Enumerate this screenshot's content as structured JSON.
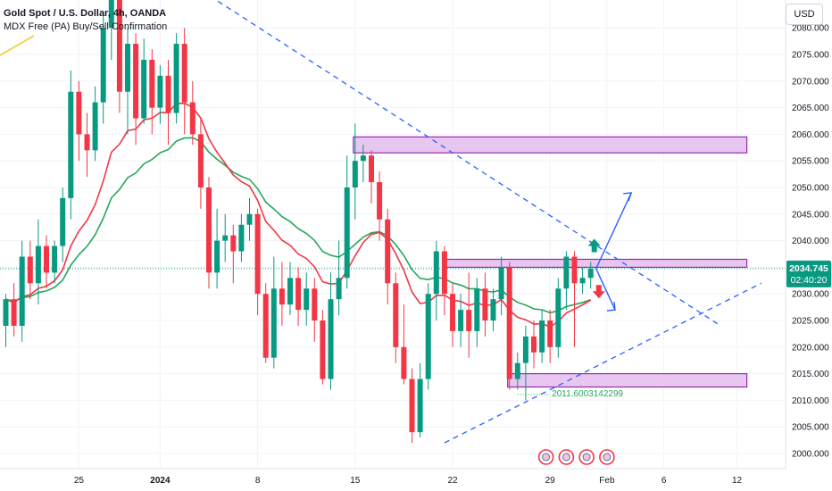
{
  "header": {
    "title": "Gold Spot / U.S. Dollar, 4h, OANDA",
    "indicator": "MDX Free (PA) Buy/Sell Confirmation",
    "currency": "USD"
  },
  "price_tag": {
    "price": "2034.745",
    "countdown": "02:40:20"
  },
  "level_label": "2011.6003142299",
  "colors": {
    "up": "#089981",
    "down": "#f23645",
    "zone_fill": "#e7c6f0",
    "zone_border": "#9c27b0",
    "trend": "#2962ff",
    "ema_red": "#f23645",
    "ema_green": "#26a65b",
    "price_tag": "#089981"
  },
  "chart_data": {
    "type": "candlestick",
    "title": "Gold Spot / U.S. Dollar, 4h, OANDA",
    "y_ticks": [
      2000,
      2005,
      2010,
      2015,
      2020,
      2025,
      2030,
      2035,
      2040,
      2045,
      2050,
      2055,
      2060,
      2065,
      2070,
      2075,
      2080
    ],
    "x_ticks": [
      {
        "label": "25",
        "bar": 9
      },
      {
        "label": "2024",
        "bar": 19,
        "bold": true
      },
      {
        "label": "8",
        "bar": 31
      },
      {
        "label": "15",
        "bar": 43
      },
      {
        "label": "22",
        "bar": 55
      },
      {
        "label": "29",
        "bar": 67
      },
      {
        "label": "Feb",
        "bar": 74
      },
      {
        "label": "6",
        "bar": 81
      },
      {
        "label": "12",
        "bar": 90
      }
    ],
    "last_price": 2034.745,
    "candles": [
      [
        2024.0,
        2029.0,
        2020.0,
        2030.0
      ],
      [
        2029.0,
        2024.0,
        2022.0,
        2032.0
      ],
      [
        2024.0,
        2037.0,
        2021.0,
        2040.0
      ],
      [
        2037.0,
        2032.0,
        2029.0,
        2040.0
      ],
      [
        2032.0,
        2039.0,
        2028.0,
        2044.0
      ],
      [
        2039.0,
        2034.0,
        2031.0,
        2041.0
      ],
      [
        2034.0,
        2039.0,
        2032.0,
        2040.0
      ],
      [
        2039.0,
        2048.0,
        2036.0,
        2050.0
      ],
      [
        2048.0,
        2068.0,
        2044.0,
        2072.0
      ],
      [
        2068.0,
        2060.0,
        2055.0,
        2070.0
      ],
      [
        2060.0,
        2057.0,
        2052.0,
        2064.0
      ],
      [
        2057.0,
        2066.0,
        2055.0,
        2069.0
      ],
      [
        2066.0,
        2080.0,
        2062.0,
        2083.0
      ],
      [
        2080.0,
        2092.0,
        2074.0,
        2097.0
      ],
      [
        2092.0,
        2068.0,
        2064.0,
        2095.0
      ],
      [
        2068.0,
        2077.0,
        2060.0,
        2080.0
      ],
      [
        2077.0,
        2063.0,
        2058.0,
        2079.0
      ],
      [
        2063.0,
        2074.0,
        2062.0,
        2078.0
      ],
      [
        2074.0,
        2065.0,
        2060.0,
        2076.0
      ],
      [
        2065.0,
        2071.0,
        2062.0,
        2073.0
      ],
      [
        2071.0,
        2064.0,
        2058.0,
        2074.0
      ],
      [
        2064.0,
        2077.0,
        2062.0,
        2079.0
      ],
      [
        2077.0,
        2066.0,
        2060.0,
        2080.0
      ],
      [
        2066.0,
        2060.0,
        2058.0,
        2070.0
      ],
      [
        2060.0,
        2050.0,
        2046.0,
        2063.0
      ],
      [
        2050.0,
        2034.0,
        2031.0,
        2052.0
      ],
      [
        2034.0,
        2040.0,
        2031.0,
        2046.0
      ],
      [
        2040.0,
        2041.0,
        2036.0,
        2045.0
      ],
      [
        2041.0,
        2038.0,
        2032.0,
        2043.0
      ],
      [
        2038.0,
        2043.0,
        2036.0,
        2045.0
      ],
      [
        2043.0,
        2045.0,
        2040.0,
        2048.0
      ],
      [
        2045.0,
        2030.0,
        2026.0,
        2046.0
      ],
      [
        2030.0,
        2018.0,
        2017.0,
        2032.0
      ],
      [
        2018.0,
        2031.0,
        2016.0,
        2037.0
      ],
      [
        2031.0,
        2028.0,
        2024.0,
        2036.0
      ],
      [
        2028.0,
        2033.0,
        2026.0,
        2036.0
      ],
      [
        2033.0,
        2027.0,
        2024.0,
        2035.0
      ],
      [
        2027.0,
        2031.0,
        2024.0,
        2034.0
      ],
      [
        2031.0,
        2025.0,
        2021.0,
        2033.0
      ],
      [
        2025.0,
        2014.0,
        2013.0,
        2027.0
      ],
      [
        2014.0,
        2029.0,
        2012.0,
        2034.0
      ],
      [
        2029.0,
        2033.0,
        2026.0,
        2040.0
      ],
      [
        2033.0,
        2050.0,
        2031.0,
        2056.0
      ],
      [
        2050.0,
        2055.0,
        2044.0,
        2062.0
      ],
      [
        2055.0,
        2056.0,
        2051.0,
        2058.0
      ],
      [
        2056.0,
        2051.0,
        2047.0,
        2057.0
      ],
      [
        2051.0,
        2044.0,
        2040.0,
        2053.0
      ],
      [
        2044.0,
        2032.0,
        2028.0,
        2046.0
      ],
      [
        2032.0,
        2020.0,
        2017.0,
        2034.0
      ],
      [
        2020.0,
        2014.0,
        2013.0,
        2028.0
      ],
      [
        2014.0,
        2004.0,
        2002.0,
        2016.0
      ],
      [
        2004.0,
        2014.0,
        2003.0,
        2017.0
      ],
      [
        2014.0,
        2030.0,
        2012.0,
        2032.0
      ],
      [
        2030.0,
        2038.0,
        2025.0,
        2040.0
      ],
      [
        2038.0,
        2030.0,
        2026.0,
        2039.0
      ],
      [
        2030.0,
        2023.0,
        2020.0,
        2032.0
      ],
      [
        2023.0,
        2027.0,
        2020.0,
        2030.0
      ],
      [
        2027.0,
        2023.0,
        2018.0,
        2034.0
      ],
      [
        2023.0,
        2031.0,
        2020.0,
        2033.0
      ],
      [
        2031.0,
        2025.0,
        2022.0,
        2034.0
      ],
      [
        2025.0,
        2029.0,
        2023.0,
        2031.0
      ],
      [
        2029.0,
        2035.0,
        2026.0,
        2037.0
      ],
      [
        2035.0,
        2014.0,
        2012.0,
        2036.0
      ],
      [
        2014.0,
        2017.0,
        2012.0,
        2019.0
      ],
      [
        2017.0,
        2022.0,
        2010.0,
        2024.0
      ],
      [
        2022.0,
        2019.0,
        2016.0,
        2025.0
      ],
      [
        2019.0,
        2025.0,
        2017.0,
        2027.0
      ],
      [
        2025.0,
        2020.0,
        2017.0,
        2027.0
      ],
      [
        2020.0,
        2031.0,
        2018.0,
        2033.0
      ],
      [
        2031.0,
        2037.0,
        2027.0,
        2038.0
      ],
      [
        2037.0,
        2032.0,
        2020.0,
        2038.0
      ],
      [
        2032.0,
        2033.0,
        2030.0,
        2035.0
      ],
      [
        2033.0,
        2034.745,
        2031.0,
        2036.0
      ]
    ],
    "zones": [
      {
        "bar_start": 43,
        "bar_end": 91,
        "low": 2056.5,
        "high": 2059.5
      },
      {
        "bar_start": 54,
        "bar_end": 91,
        "low": 2035.0,
        "high": 2036.5
      },
      {
        "bar_start": 62,
        "bar_end": 91,
        "low": 2012.5,
        "high": 2015.0
      }
    ],
    "trendlines": [
      {
        "from": [
          18,
          2093.0
        ],
        "to": [
          88,
          2024.0
        ]
      },
      {
        "from": [
          54,
          2002.0
        ],
        "to": [
          93,
          2032.0
        ]
      }
    ]
  }
}
